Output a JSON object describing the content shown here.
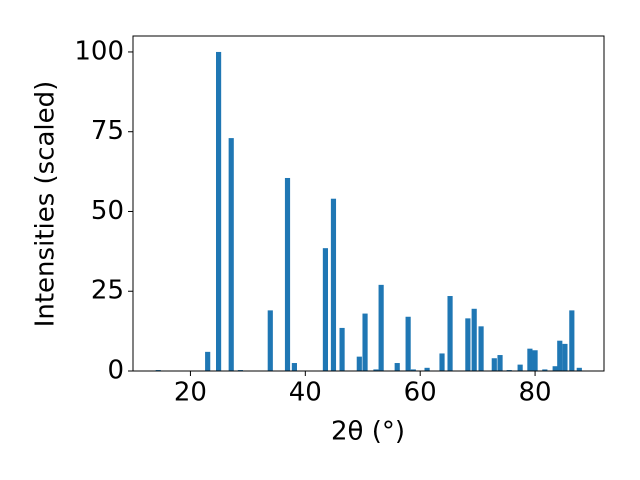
{
  "chart_data": {
    "type": "bar",
    "xlabel": "2θ (°)",
    "ylabel": "Intensities (scaled)",
    "color": "#1f77b4",
    "bar_width": 0.9,
    "x": [
      14.4,
      23.0,
      24.9,
      27.1,
      28.7,
      33.9,
      36.9,
      38.1,
      43.5,
      44.9,
      46.4,
      49.4,
      50.4,
      52.3,
      53.2,
      56.0,
      57.9,
      58.8,
      61.2,
      63.8,
      65.2,
      68.3,
      69.4,
      70.6,
      72.9,
      73.9,
      75.5,
      77.4,
      79.1,
      80.0,
      81.7,
      83.5,
      84.3,
      85.2,
      86.4,
      87.7
    ],
    "values": [
      0.3,
      6,
      100,
      73,
      0.3,
      19,
      60.5,
      2.5,
      38.5,
      54,
      13.5,
      4.5,
      18,
      0.5,
      27,
      2.5,
      17,
      0.5,
      1,
      5.5,
      23.5,
      16.5,
      19.5,
      14,
      4,
      5,
      0.3,
      2,
      7,
      6.5,
      0.5,
      1.5,
      9.5,
      8.5,
      19,
      1
    ],
    "xlim": [
      10,
      92
    ],
    "ylim": [
      0,
      105
    ],
    "xticks": [
      20,
      40,
      60,
      80
    ],
    "yticks": [
      0,
      25,
      50,
      75,
      100
    ]
  }
}
